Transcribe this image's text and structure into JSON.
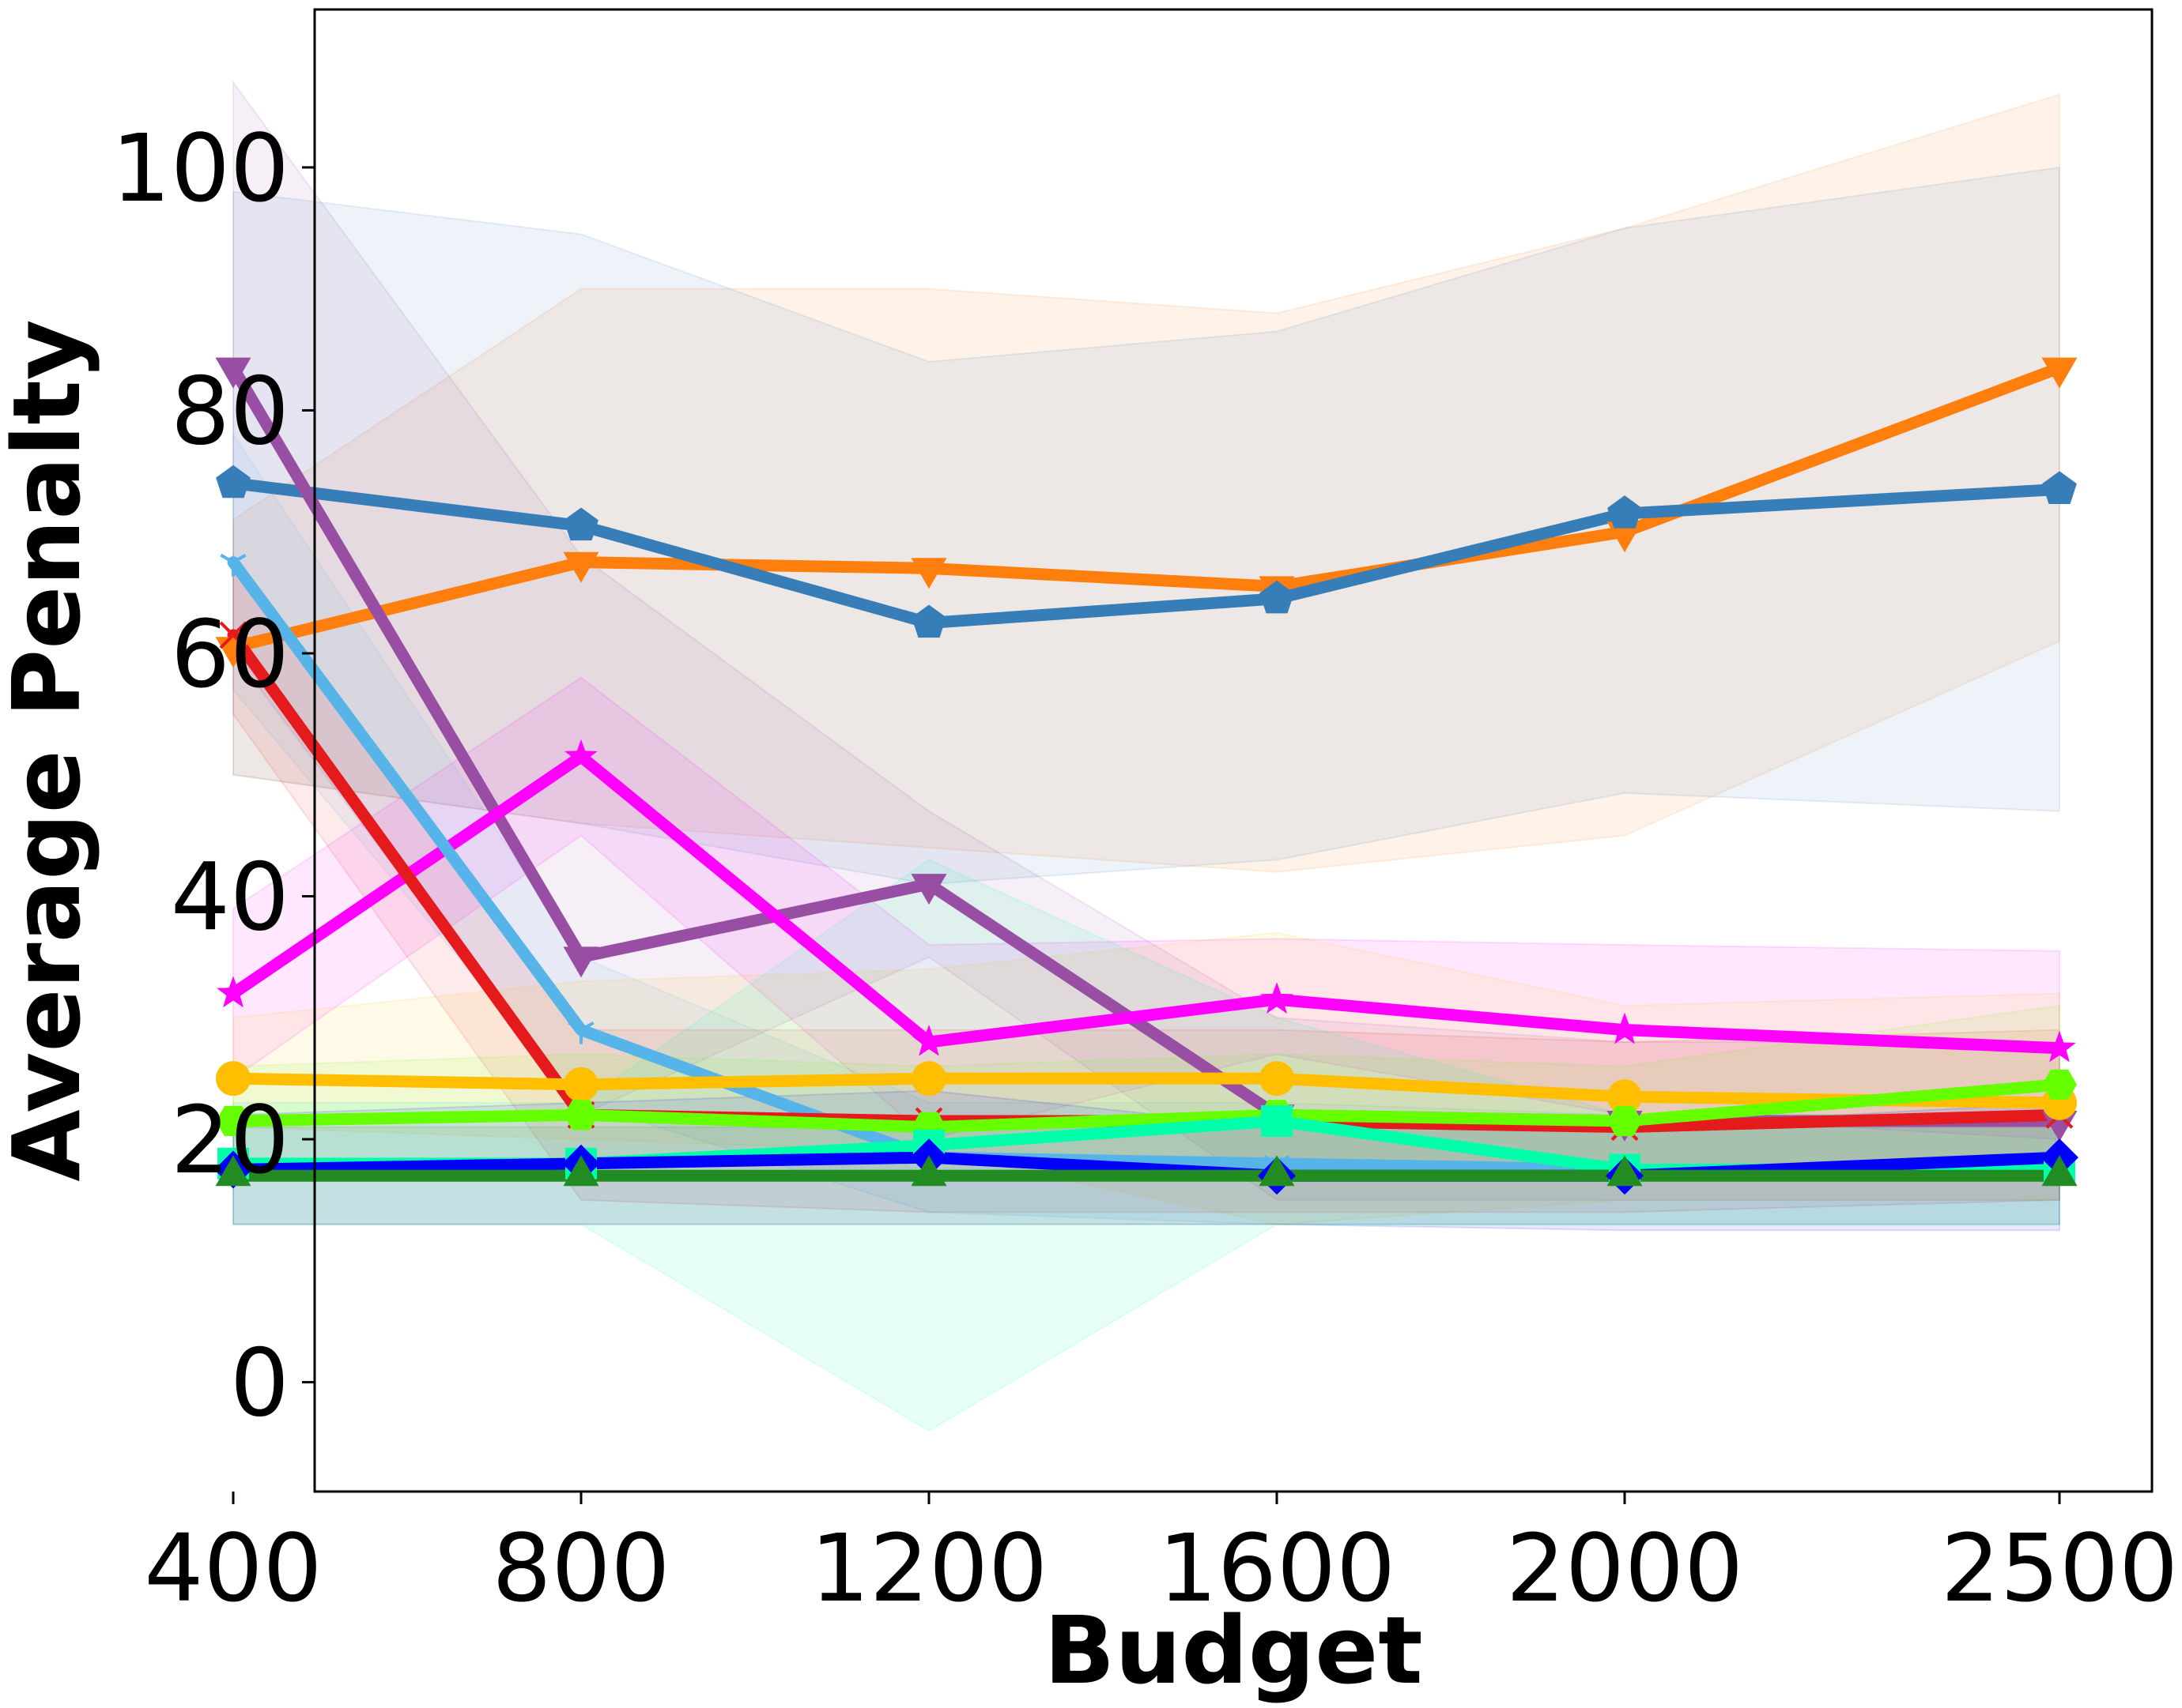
{
  "chart_data": {
    "type": "line",
    "title": "",
    "xlabel": "Budget",
    "ylabel": "Average Penalty",
    "x": [
      400,
      800,
      1200,
      1600,
      2000,
      2500
    ],
    "x_tick_labels": [
      "400",
      "800",
      "1200",
      "1600",
      "2000",
      "2500"
    ],
    "yticks": [
      0,
      20,
      40,
      60,
      80,
      100
    ],
    "y_tick_labels": [
      "0",
      "20",
      "40",
      "60",
      "80",
      "100"
    ],
    "ylim": [
      -9,
      113
    ],
    "grid": false,
    "legend": "none",
    "series": [
      {
        "color": "#ff7f0e",
        "marker": "triangle-down",
        "values": [
          60.5,
          67.5,
          67,
          65.5,
          70,
          83.5
        ],
        "band_low": [
          50,
          46,
          44,
          42,
          45,
          61
        ],
        "band_high": [
          71,
          90,
          90,
          88,
          95,
          106
        ]
      },
      {
        "color": "#377eb8",
        "marker": "pentagon",
        "values": [
          74,
          70.5,
          62.5,
          64.5,
          71.5,
          73.5
        ],
        "band_low": [
          50,
          46,
          41,
          43,
          48.5,
          47
        ],
        "band_high": [
          98,
          94.5,
          84,
          86.5,
          95,
          100
        ]
      },
      {
        "color": "#984ea3",
        "marker": "triangle-down",
        "values": [
          83.5,
          35,
          41,
          22,
          21.5,
          21.5
        ],
        "band_low": [
          60,
          22,
          35,
          15,
          15,
          15
        ],
        "band_high": [
          107,
          68,
          47,
          30,
          28,
          28
        ]
      },
      {
        "color": "#ff00ff",
        "marker": "star",
        "values": [
          32,
          51.5,
          28,
          31.5,
          29,
          27.5
        ],
        "band_low": [
          25,
          45,
          20,
          27,
          22,
          20
        ],
        "band_high": [
          39,
          58,
          36,
          36.5,
          36,
          35.5
        ]
      },
      {
        "color": "#56b4e9",
        "marker": "tri",
        "values": [
          67.5,
          29,
          18.5,
          18,
          17.5,
          17.5
        ],
        "band_low": [
          57,
          23,
          14,
          13,
          13,
          13
        ],
        "band_high": [
          78,
          35,
          23,
          23,
          22,
          22
        ]
      },
      {
        "color": "#e41a1c",
        "marker": "x",
        "values": [
          61.5,
          22,
          21.5,
          21.5,
          21,
          22
        ],
        "band_low": [
          55,
          15,
          14,
          14,
          14,
          15
        ],
        "band_high": [
          68,
          29,
          29,
          29,
          28,
          29
        ]
      },
      {
        "color": "#ffbf00",
        "marker": "circle",
        "values": [
          25,
          24.5,
          25,
          25,
          23.5,
          23
        ],
        "band_low": [
          21,
          20,
          19,
          13,
          15,
          15
        ],
        "band_high": [
          30,
          33,
          34,
          37,
          31,
          32
        ]
      },
      {
        "color": "#66ff00",
        "marker": "hexagon",
        "values": [
          21.5,
          22,
          21,
          22,
          21.5,
          24.5
        ],
        "band_low": [
          17,
          17,
          17,
          17,
          17,
          17
        ],
        "band_high": [
          26,
          27,
          26,
          27,
          26,
          31
        ]
      },
      {
        "color": "#00ffaa",
        "marker": "square",
        "values": [
          18,
          18,
          19.5,
          21.5,
          17.5,
          17.5
        ],
        "band_low": [
          13,
          13,
          -4,
          13,
          13,
          13
        ],
        "band_high": [
          23,
          23,
          43,
          30,
          22,
          22
        ]
      },
      {
        "color": "#0000ff",
        "marker": "diamond",
        "values": [
          17.5,
          18,
          18.5,
          17,
          17,
          18.5
        ],
        "band_low": [
          13,
          13,
          13,
          13,
          12.5,
          12.5
        ],
        "band_high": [
          22,
          23,
          24,
          21,
          21,
          23
        ]
      },
      {
        "color": "#228b22",
        "marker": "triangle-up",
        "values": [
          17,
          17,
          17,
          17,
          17,
          17
        ],
        "band_low": [
          13,
          13,
          13,
          13,
          13,
          13
        ],
        "band_high": [
          21,
          21,
          21,
          21,
          21,
          21
        ]
      }
    ]
  }
}
